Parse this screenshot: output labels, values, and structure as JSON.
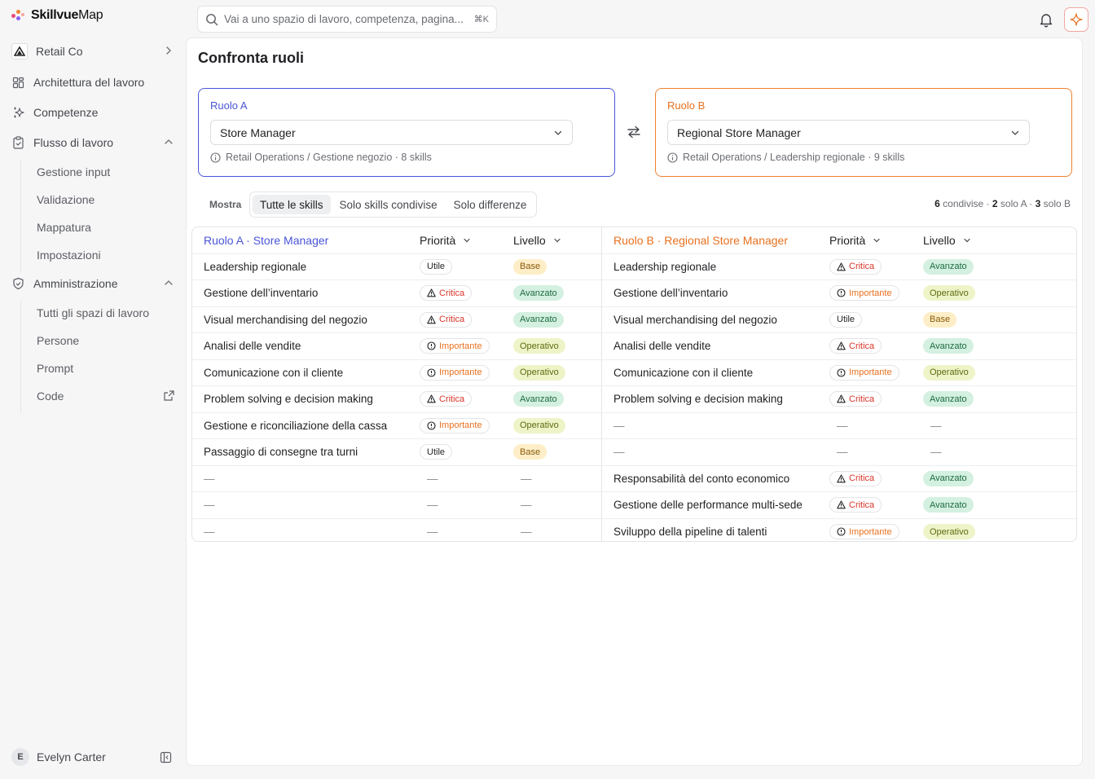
{
  "app": {
    "logo_bold": "Skillvue",
    "logo_light": "Map"
  },
  "search": {
    "placeholder": "Vai a uno spazio di lavoro, competenza, pagina...",
    "shortcut": "⌘K"
  },
  "sidebar": {
    "workspace": "Retail Co",
    "items": [
      {
        "label": "Architettura del lavoro",
        "icon": "grid-icon"
      },
      {
        "label": "Competenze",
        "icon": "sparkles-icon"
      },
      {
        "label": "Flusso di lavoro",
        "icon": "clipboard-icon"
      },
      {
        "label": "Amministrazione",
        "icon": "shield-icon"
      }
    ],
    "workflow_sub": [
      "Gestione input",
      "Validazione",
      "Mappatura",
      "Impostazioni"
    ],
    "admin_sub": [
      "Tutti gli spazi di lavoro",
      "Persone",
      "Prompt",
      "Code"
    ],
    "user_initial": "E",
    "user_name": "Evelyn Carter"
  },
  "page": {
    "title": "Confronta ruoli"
  },
  "role_a": {
    "label": "Ruolo A",
    "selected": "Store Manager",
    "meta": "Retail Operations / Gestione negozio · 8 skills"
  },
  "role_b": {
    "label": "Ruolo B",
    "selected": "Regional Store Manager",
    "meta": "Retail Operations / Leadership regionale · 9 skills"
  },
  "filter": {
    "label": "Mostra",
    "options": [
      "Tutte le skills",
      "Solo skills condivise",
      "Solo differenze"
    ],
    "active": 0
  },
  "counts": {
    "shared_n": "6",
    "shared_label": "condivise",
    "only_a_n": "2",
    "only_a_label": "solo A",
    "only_b_n": "3",
    "only_b_label": "solo B",
    "sep": "·"
  },
  "table": {
    "header_a": "Ruolo A · Store Manager",
    "header_b": "Ruolo B · Regional Store Manager",
    "col_priority": "Priorità",
    "col_level": "Livello",
    "dash": "—",
    "rows": [
      {
        "a": {
          "skill": "Leadership regionale",
          "priority": "Utile",
          "level": "Base"
        },
        "b": {
          "skill": "Leadership regionale",
          "priority": "Critica",
          "level": "Avanzato"
        }
      },
      {
        "a": {
          "skill": "Gestione dell’inventario",
          "priority": "Critica",
          "level": "Avanzato"
        },
        "b": {
          "skill": "Gestione dell’inventario",
          "priority": "Importante",
          "level": "Operativo"
        }
      },
      {
        "a": {
          "skill": "Visual merchandising del negozio",
          "priority": "Critica",
          "level": "Avanzato"
        },
        "b": {
          "skill": "Visual merchandising del negozio",
          "priority": "Utile",
          "level": "Base"
        }
      },
      {
        "a": {
          "skill": "Analisi delle vendite",
          "priority": "Importante",
          "level": "Operativo"
        },
        "b": {
          "skill": "Analisi delle vendite",
          "priority": "Critica",
          "level": "Avanzato"
        }
      },
      {
        "a": {
          "skill": "Comunicazione con il cliente",
          "priority": "Importante",
          "level": "Operativo"
        },
        "b": {
          "skill": "Comunicazione con il cliente",
          "priority": "Importante",
          "level": "Operativo"
        }
      },
      {
        "a": {
          "skill": "Problem solving e decision making",
          "priority": "Critica",
          "level": "Avanzato"
        },
        "b": {
          "skill": "Problem solving e decision making",
          "priority": "Critica",
          "level": "Avanzato"
        }
      },
      {
        "a": {
          "skill": "Gestione e riconciliazione della cassa",
          "priority": "Importante",
          "level": "Operativo"
        },
        "b": null
      },
      {
        "a": {
          "skill": "Passaggio di consegne tra turni",
          "priority": "Utile",
          "level": "Base"
        },
        "b": null
      },
      {
        "a": null,
        "b": {
          "skill": "Responsabilità del conto economico",
          "priority": "Critica",
          "level": "Avanzato"
        }
      },
      {
        "a": null,
        "b": {
          "skill": "Gestione delle performance multi-sede",
          "priority": "Critica",
          "level": "Avanzato"
        }
      },
      {
        "a": null,
        "b": {
          "skill": "Sviluppo della pipeline di talenti",
          "priority": "Importante",
          "level": "Operativo"
        }
      }
    ]
  },
  "colors": {
    "role_a": "#4a55d8",
    "role_b": "#e8701f",
    "critica": "#d9352a",
    "importante": "#e8701f"
  }
}
